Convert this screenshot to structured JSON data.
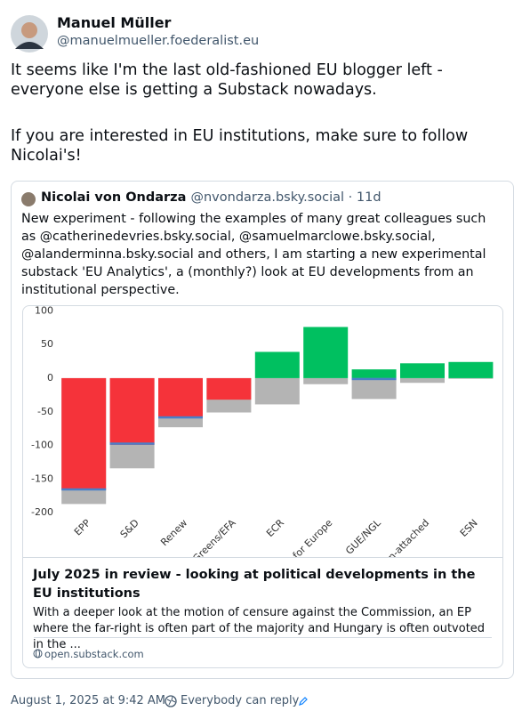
{
  "post": {
    "author": "Manuel Müller",
    "handle": "@manuelmueller.foederalist.eu",
    "paragraphs": [
      "It seems like I'm the last old-fashioned EU blogger left - everyone else is getting a Substack nowadays.",
      "If you are interested in EU institutions, make sure to follow Nicolai's!"
    ],
    "timestamp": "August 1, 2025 at 9:42 AM",
    "reply_setting": "Everybody can reply"
  },
  "quote": {
    "author": "Nicolai von Ondarza",
    "handle": "@nvondarza.bsky.social · 11d",
    "text": "New experiment - following the examples of many great colleagues such as @catherinedevries.bsky.social, @samuelmarclowe.bsky.social, @alanderminna.bsky.social and others, I am starting a new experimental substack 'EU Analytics', a (monthly?) look at EU developments from an institutional perspective.",
    "card": {
      "title": "July 2025 in review - looking at political developments in the EU institutions",
      "description": "With a deeper look at the motion of censure against the Commission, an EP where the far-right is often part of the majority and Hungary is often outvoted in the ...",
      "domain": "open.substack.com"
    }
  },
  "chart_data": {
    "type": "bar",
    "categories": [
      "EPP",
      "S&D",
      "Renew",
      "Greens/EFA",
      "ECR",
      "Patriots for Europe",
      "GUE/NGL",
      "Non-attached",
      "ESN"
    ],
    "positive_color": "#00c060",
    "negative_color": "#f5333a",
    "series": [
      {
        "values": [
          -166,
          -99,
          -58,
          -32,
          39,
          76,
          13,
          22,
          24
        ]
      },
      {
        "color": "#b4b4b4",
        "values": [
          -187,
          -134,
          -73,
          -51,
          -39,
          -9,
          -31,
          -7,
          -1
        ]
      },
      {
        "color": "#4a7fc8",
        "values": [
          -165,
          -97,
          -58,
          null,
          null,
          null,
          -1,
          null,
          null
        ]
      }
    ],
    "ylim": [
      -205,
      107
    ],
    "yticks": [
      100,
      50,
      0,
      -50,
      -100,
      -150,
      -200
    ]
  }
}
